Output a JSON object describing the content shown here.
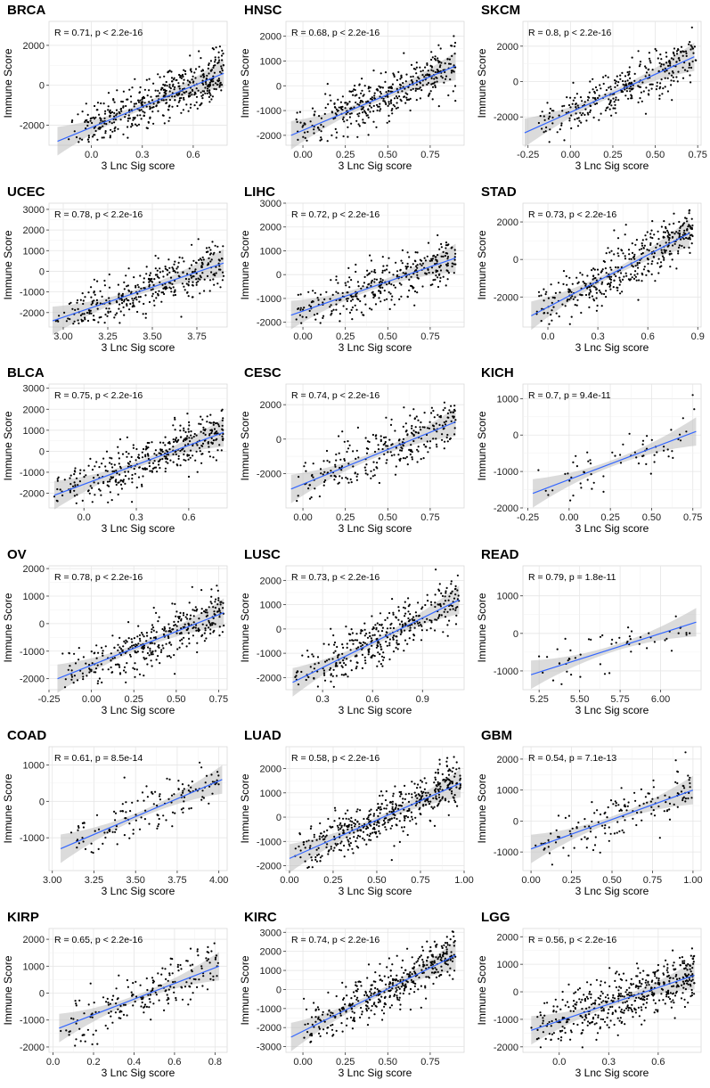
{
  "figure": {
    "xlabel": "3 Lnc Sig score",
    "ylabel": "Immune Score"
  },
  "chart_data": [
    {
      "type": "scatter",
      "title": "BRCA",
      "stat": "R = 0.71, p < 2.2e-16",
      "xlim": [
        -0.25,
        0.8
      ],
      "ylim": [
        -3000,
        3200
      ],
      "xticks": [
        0.0,
        0.3,
        0.6
      ],
      "xticklabels": [
        "0.0",
        "0.3",
        "0.6"
      ],
      "yticks": [
        -2000,
        0,
        2000
      ],
      "yticklabels": [
        "-2000",
        "0",
        "2000"
      ],
      "fit": {
        "x0": -0.2,
        "y0": -2800,
        "x1": 0.78,
        "y1": 600
      },
      "cloud": {
        "x_min": -0.15,
        "x_max": 0.78,
        "n": 480
      }
    },
    {
      "type": "scatter",
      "title": "HNSC",
      "stat": "R = 0.68, p < 2.2e-16",
      "xlim": [
        -0.1,
        0.95
      ],
      "ylim": [
        -2400,
        2600
      ],
      "xticks": [
        0.0,
        0.25,
        0.5,
        0.75
      ],
      "xticklabels": [
        "0.00",
        "0.25",
        "0.50",
        "0.75"
      ],
      "yticks": [
        -2000,
        -1000,
        0,
        1000,
        2000
      ],
      "yticklabels": [
        "-2000",
        "-1000",
        "0",
        "1000",
        "2000"
      ],
      "fit": {
        "x0": -0.07,
        "y0": -2000,
        "x1": 0.9,
        "y1": 800
      },
      "cloud": {
        "x_min": -0.05,
        "x_max": 0.9,
        "n": 420
      }
    },
    {
      "type": "scatter",
      "title": "SKCM",
      "stat": "R = 0.8, p < 2.2e-16",
      "xlim": [
        -0.28,
        0.77
      ],
      "ylim": [
        -3600,
        3400
      ],
      "xticks": [
        -0.25,
        0.0,
        0.25,
        0.5,
        0.75
      ],
      "xticklabels": [
        "-0.25",
        "0.00",
        "0.25",
        "0.50",
        "0.75"
      ],
      "yticks": [
        -2000,
        0,
        2000
      ],
      "yticklabels": [
        "-2000",
        "0",
        "2000"
      ],
      "fit": {
        "x0": -0.27,
        "y0": -2900,
        "x1": 0.73,
        "y1": 1400
      },
      "cloud": {
        "x_min": -0.2,
        "x_max": 0.74,
        "n": 330
      }
    },
    {
      "type": "scatter",
      "title": "UCEC",
      "stat": "R = 0.78, p < 2.2e-16",
      "xlim": [
        2.92,
        3.92
      ],
      "ylim": [
        -2700,
        3300
      ],
      "xticks": [
        3.0,
        3.25,
        3.5,
        3.75
      ],
      "xticklabels": [
        "3.00",
        "3.25",
        "3.50",
        "3.75"
      ],
      "yticks": [
        -2000,
        -1000,
        0,
        1000,
        2000,
        3000
      ],
      "yticklabels": [
        "-2000",
        "-1000",
        "0",
        "1000",
        "2000",
        "3000"
      ],
      "fit": {
        "x0": 2.94,
        "y0": -2400,
        "x1": 3.9,
        "y1": 400
      },
      "cloud": {
        "x_min": 2.95,
        "x_max": 3.9,
        "n": 380
      }
    },
    {
      "type": "scatter",
      "title": "LIHC",
      "stat": "R = 0.72, p < 2.2e-16",
      "xlim": [
        -0.1,
        0.95
      ],
      "ylim": [
        -2200,
        3000
      ],
      "xticks": [
        0.0,
        0.25,
        0.5,
        0.75
      ],
      "xticklabels": [
        "0.00",
        "0.25",
        "0.50",
        "0.75"
      ],
      "yticks": [
        -2000,
        -1000,
        0,
        1000,
        2000,
        3000
      ],
      "yticklabels": [
        "-2000",
        "-1000",
        "0",
        "1000",
        "2000",
        "3000"
      ],
      "fit": {
        "x0": -0.07,
        "y0": -1700,
        "x1": 0.9,
        "y1": 700
      },
      "cloud": {
        "x_min": -0.05,
        "x_max": 0.9,
        "n": 340
      }
    },
    {
      "type": "scatter",
      "title": "STAD",
      "stat": "R = 0.73, p < 2.2e-16",
      "xlim": [
        -0.15,
        0.92
      ],
      "ylim": [
        -3600,
        3000
      ],
      "xticks": [
        0.0,
        0.3,
        0.6,
        0.9
      ],
      "xticklabels": [
        "0.0",
        "0.3",
        "0.6",
        "0.9"
      ],
      "yticks": [
        -2000,
        0,
        2000
      ],
      "yticklabels": [
        "-2000",
        "0",
        "2000"
      ],
      "fit": {
        "x0": -0.1,
        "y0": -3000,
        "x1": 0.85,
        "y1": 1400
      },
      "cloud": {
        "x_min": -0.08,
        "x_max": 0.87,
        "n": 400
      }
    },
    {
      "type": "scatter",
      "title": "BLCA",
      "stat": "R = 0.75, p < 2.2e-16",
      "xlim": [
        -0.2,
        0.82
      ],
      "ylim": [
        -2700,
        3200
      ],
      "xticks": [
        0.0,
        0.3,
        0.6
      ],
      "xticklabels": [
        "0.0",
        "0.3",
        "0.6"
      ],
      "yticks": [
        -2000,
        -1000,
        0,
        1000,
        2000,
        3000
      ],
      "yticklabels": [
        "-2000",
        "-1000",
        "0",
        "1000",
        "2000",
        "3000"
      ],
      "fit": {
        "x0": -0.17,
        "y0": -2100,
        "x1": 0.8,
        "y1": 900
      },
      "cloud": {
        "x_min": -0.17,
        "x_max": 0.8,
        "n": 390
      }
    },
    {
      "type": "scatter",
      "title": "CESC",
      "stat": "R = 0.74, p < 2.2e-16",
      "xlim": [
        -0.1,
        0.95
      ],
      "ylim": [
        -4000,
        3200
      ],
      "xticks": [
        0.0,
        0.25,
        0.5,
        0.75
      ],
      "xticklabels": [
        "0.00",
        "0.25",
        "0.50",
        "0.75"
      ],
      "yticks": [
        -2000,
        0,
        2000
      ],
      "yticklabels": [
        "-2000",
        "0",
        "2000"
      ],
      "fit": {
        "x0": -0.07,
        "y0": -2900,
        "x1": 0.9,
        "y1": 1000
      },
      "cloud": {
        "x_min": -0.05,
        "x_max": 0.9,
        "n": 280
      }
    },
    {
      "type": "scatter",
      "title": "KICH",
      "stat": "R = 0.7, p = 9.4e-11",
      "xlim": [
        -0.28,
        0.8
      ],
      "ylim": [
        -2000,
        1400
      ],
      "xticks": [
        -0.25,
        0.0,
        0.25,
        0.5,
        0.75
      ],
      "xticklabels": [
        "-0.25",
        "0.00",
        "0.25",
        "0.50",
        "0.75"
      ],
      "yticks": [
        -2000,
        -1000,
        0,
        1000
      ],
      "yticklabels": [
        "-2000",
        "-1000",
        "0",
        "1000"
      ],
      "fit": {
        "x0": -0.22,
        "y0": -1600,
        "x1": 0.77,
        "y1": 100
      },
      "cloud": {
        "x_min": -0.22,
        "x_max": 0.77,
        "n": 65
      }
    },
    {
      "type": "scatter",
      "title": "OV",
      "stat": "R = 0.78, p < 2.2e-16",
      "xlim": [
        -0.25,
        0.8
      ],
      "ylim": [
        -2400,
        2100
      ],
      "xticks": [
        -0.25,
        0.0,
        0.25,
        0.5,
        0.75
      ],
      "xticklabels": [
        "-0.25",
        "0.00",
        "0.25",
        "0.50",
        "0.75"
      ],
      "yticks": [
        -2000,
        -1000,
        0,
        1000,
        2000
      ],
      "yticklabels": [
        "-2000",
        "-1000",
        "0",
        "1000",
        "2000"
      ],
      "fit": {
        "x0": -0.2,
        "y0": -2000,
        "x1": 0.78,
        "y1": 400
      },
      "cloud": {
        "x_min": -0.18,
        "x_max": 0.78,
        "n": 360
      }
    },
    {
      "type": "scatter",
      "title": "LUSC",
      "stat": "R = 0.73, p < 2.2e-16",
      "xlim": [
        0.08,
        1.15
      ],
      "ylim": [
        -2500,
        2600
      ],
      "xticks": [
        0.3,
        0.6,
        0.9
      ],
      "xticklabels": [
        "0.3",
        "0.6",
        "0.9"
      ],
      "yticks": [
        -2000,
        -1000,
        0,
        1000,
        2000
      ],
      "yticklabels": [
        "-2000",
        "-1000",
        "0",
        "1000",
        "2000"
      ],
      "fit": {
        "x0": 0.12,
        "y0": -2200,
        "x1": 1.12,
        "y1": 1200
      },
      "cloud": {
        "x_min": 0.12,
        "x_max": 1.12,
        "n": 380
      }
    },
    {
      "type": "scatter",
      "title": "READ",
      "stat": "R = 0.79, p = 1.8e-11",
      "xlim": [
        5.15,
        6.25
      ],
      "ylim": [
        -1500,
        1800
      ],
      "xticks": [
        5.25,
        5.5,
        5.75,
        6.0
      ],
      "xticklabels": [
        "5.25",
        "5.50",
        "5.75",
        "6.00"
      ],
      "yticks": [
        -1000,
        0,
        1000
      ],
      "yticklabels": [
        "-1000",
        "0",
        "1000"
      ],
      "fit": {
        "x0": 5.2,
        "y0": -1100,
        "x1": 6.22,
        "y1": 300
      },
      "cloud": {
        "x_min": 5.22,
        "x_max": 6.2,
        "n": 55
      }
    },
    {
      "type": "scatter",
      "title": "COAD",
      "stat": "R = 0.61, p = 8.5e-14",
      "xlim": [
        2.98,
        4.05
      ],
      "ylim": [
        -1900,
        1500
      ],
      "xticks": [
        3.0,
        3.25,
        3.5,
        3.75,
        4.0
      ],
      "xticklabels": [
        "3.00",
        "3.25",
        "3.50",
        "3.75",
        "4.00"
      ],
      "yticks": [
        -1000,
        0,
        1000
      ],
      "yticklabels": [
        "-1000",
        "0",
        "1000"
      ],
      "fit": {
        "x0": 3.05,
        "y0": -1300,
        "x1": 4.02,
        "y1": 600
      },
      "cloud": {
        "x_min": 3.1,
        "x_max": 4.0,
        "n": 140
      }
    },
    {
      "type": "scatter",
      "title": "LUAD",
      "stat": "R = 0.58, p < 2.2e-16",
      "xlim": [
        -0.02,
        1.0
      ],
      "ylim": [
        -2200,
        2900
      ],
      "xticks": [
        0.0,
        0.25,
        0.5,
        0.75,
        1.0
      ],
      "xticklabels": [
        "0.00",
        "0.25",
        "0.50",
        "0.75",
        "1.00"
      ],
      "yticks": [
        -2000,
        -1000,
        0,
        1000,
        2000
      ],
      "yticklabels": [
        "-2000",
        "-1000",
        "0",
        "1000",
        "2000"
      ],
      "fit": {
        "x0": 0.0,
        "y0": -1700,
        "x1": 0.98,
        "y1": 1400
      },
      "cloud": {
        "x_min": 0.02,
        "x_max": 0.98,
        "n": 480
      }
    },
    {
      "type": "scatter",
      "title": "GBM",
      "stat": "R = 0.54, p = 7.1e-13",
      "xlim": [
        -0.05,
        1.05
      ],
      "ylim": [
        -1600,
        2400
      ],
      "xticks": [
        0.0,
        0.25,
        0.5,
        0.75,
        1.0
      ],
      "xticklabels": [
        "0.00",
        "0.25",
        "0.50",
        "0.75",
        "1.00"
      ],
      "yticks": [
        -1000,
        0,
        1000,
        2000
      ],
      "yticklabels": [
        "-1000",
        "0",
        "1000",
        "2000"
      ],
      "fit": {
        "x0": 0.0,
        "y0": -900,
        "x1": 1.0,
        "y1": 1000
      },
      "cloud": {
        "x_min": 0.02,
        "x_max": 1.0,
        "n": 150
      }
    },
    {
      "type": "scatter",
      "title": "KIRP",
      "stat": "R = 0.65, p < 2.2e-16",
      "xlim": [
        -0.02,
        0.86
      ],
      "ylim": [
        -2200,
        2400
      ],
      "xticks": [
        0.0,
        0.2,
        0.4,
        0.6,
        0.8
      ],
      "xticklabels": [
        "0.0",
        "0.2",
        "0.4",
        "0.6",
        "0.8"
      ],
      "yticks": [
        -2000,
        -1000,
        0,
        1000,
        2000
      ],
      "yticklabels": [
        "-2000",
        "-1000",
        "0",
        "1000",
        "2000"
      ],
      "fit": {
        "x0": 0.03,
        "y0": -1300,
        "x1": 0.82,
        "y1": 1000
      },
      "cloud": {
        "x_min": 0.03,
        "x_max": 0.82,
        "n": 200
      }
    },
    {
      "type": "scatter",
      "title": "KIRC",
      "stat": "R = 0.74, p < 2.2e-16",
      "xlim": [
        -0.1,
        0.95
      ],
      "ylim": [
        -3300,
        3200
      ],
      "xticks": [
        0.0,
        0.25,
        0.5,
        0.75
      ],
      "xticklabels": [
        "0.00",
        "0.25",
        "0.50",
        "0.75"
      ],
      "yticks": [
        -3000,
        -2000,
        -1000,
        0,
        1000,
        2000,
        3000
      ],
      "yticklabels": [
        "-3000",
        "-2000",
        "-1000",
        "0",
        "1000",
        "2000",
        "3000"
      ],
      "fit": {
        "x0": -0.07,
        "y0": -2500,
        "x1": 0.9,
        "y1": 1800
      },
      "cloud": {
        "x_min": 0.0,
        "x_max": 0.9,
        "n": 420
      }
    },
    {
      "type": "scatter",
      "title": "LGG",
      "stat": "R = 0.56, p < 2.2e-16",
      "xlim": [
        -0.22,
        0.86
      ],
      "ylim": [
        -2200,
        2300
      ],
      "xticks": [
        0.0,
        0.3,
        0.6
      ],
      "xticklabels": [
        "0.0",
        "0.3",
        "0.6"
      ],
      "yticks": [
        -2000,
        -1000,
        0,
        1000,
        2000
      ],
      "yticklabels": [
        "-2000",
        "-1000",
        "0",
        "1000",
        "2000"
      ],
      "fit": {
        "x0": -0.17,
        "y0": -1400,
        "x1": 0.82,
        "y1": 600
      },
      "cloud": {
        "x_min": -0.17,
        "x_max": 0.82,
        "n": 480
      }
    }
  ]
}
